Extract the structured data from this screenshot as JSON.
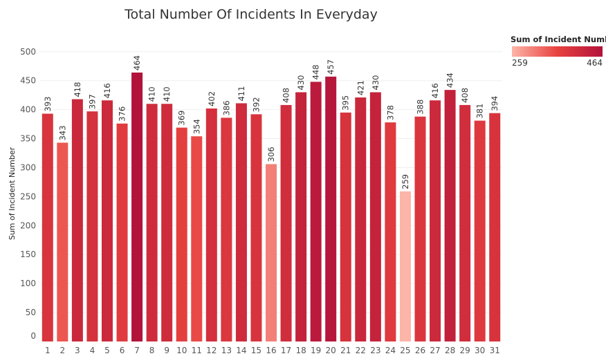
{
  "chart_data": {
    "type": "bar",
    "title": "Total Number Of Incidents In Everyday",
    "xlabel": "",
    "ylabel": "Sum of Incident Number",
    "categories": [
      "1",
      "2",
      "3",
      "4",
      "5",
      "6",
      "7",
      "8",
      "9",
      "10",
      "11",
      "12",
      "13",
      "14",
      "15",
      "16",
      "17",
      "18",
      "19",
      "20",
      "21",
      "22",
      "23",
      "24",
      "25",
      "26",
      "27",
      "28",
      "29",
      "30",
      "31"
    ],
    "values": [
      393,
      343,
      418,
      397,
      416,
      376,
      464,
      410,
      410,
      369,
      354,
      402,
      386,
      411,
      392,
      306,
      408,
      430,
      448,
      457,
      395,
      421,
      430,
      378,
      259,
      388,
      416,
      434,
      408,
      381,
      394
    ],
    "ylim": [
      0,
      520
    ],
    "yticks": [
      0,
      50,
      100,
      150,
      200,
      250,
      300,
      350,
      400,
      450,
      500
    ],
    "grid": true,
    "data_labels": true,
    "legend": {
      "title": "Sum of Incident Number",
      "placement": "top-right",
      "min_label": "259",
      "max_label": "464",
      "color_low": "#fcb5a8",
      "color_mid": "#e8423f",
      "color_high": "#b2133a"
    }
  }
}
